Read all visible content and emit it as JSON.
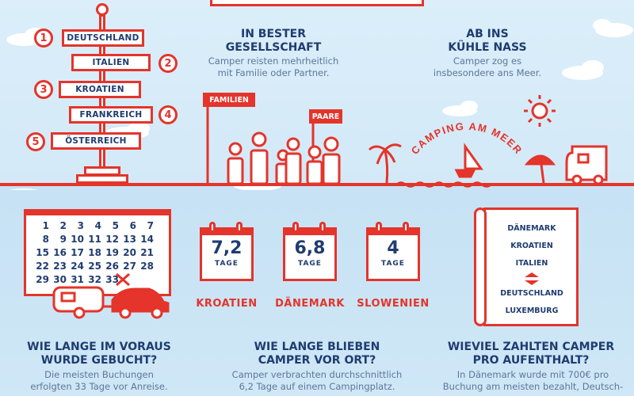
{
  "destinations": {
    "items": [
      {
        "rank": "1",
        "label": "DEUTSCHLAND"
      },
      {
        "rank": "2",
        "label": "ITALIEN"
      },
      {
        "rank": "3",
        "label": "KROATIEN"
      },
      {
        "rank": "4",
        "label": "FRANKREICH"
      },
      {
        "rank": "5",
        "label": "ÖSTERREICH"
      }
    ]
  },
  "company": {
    "title_line1": "IN BESTER",
    "title_line2": "GESELLSCHAFT",
    "text_line1": "Camper reisten mehrheitlich",
    "text_line2": "mit Familie oder Partner.",
    "sign_families": "FAMILIEN",
    "sign_couples": "PAARE"
  },
  "sea": {
    "title_line1": "AB INS",
    "title_line2": "KÜHLE NASS",
    "text_line1": "Camper zog es",
    "text_line2": "insbesondere ans Meer.",
    "arc_label": "CAMPING AM MEER"
  },
  "calendar": {
    "rows": [
      [
        "1",
        "2",
        "3",
        "4",
        "5",
        "6",
        "7"
      ],
      [
        "8",
        "9",
        "10",
        "11",
        "12",
        "13",
        "14"
      ],
      [
        "15",
        "16",
        "17",
        "18",
        "19",
        "20",
        "21"
      ],
      [
        "22",
        "23",
        "24",
        "25",
        "26",
        "27",
        "28"
      ],
      [
        "29",
        "30",
        "31",
        "32",
        "33"
      ]
    ],
    "crossed": "33"
  },
  "stays": [
    {
      "value": "7,2",
      "unit": "TAGE",
      "country": "KROATIEN"
    },
    {
      "value": "6,8",
      "unit": "TAGE",
      "country": "DÄNEMARK"
    },
    {
      "value": "4",
      "unit": "TAGE",
      "country": "SLOWENIEN"
    }
  ],
  "price_ranking": {
    "top": [
      "DÄNEMARK",
      "KROATIEN",
      "ITALIEN"
    ],
    "bottom": [
      "DEUTSCHLAND",
      "LUXEMBURG"
    ]
  },
  "bottom": {
    "advance": {
      "title_line1": "WIE LANGE IM VORAUS",
      "title_line2": "WURDE GEBUCHT?",
      "text_line1": "Die meisten Buchungen",
      "text_line2": "erfolgten 33 Tage vor Anreise."
    },
    "stay": {
      "title_line1": "WIE LANGE BLIEBEN",
      "title_line2": "CAMPER VOR ORT?",
      "text_line1": "Camper verbrachten durchschnittlich",
      "text_line2": "6,2 Tage auf einem Campingplatz."
    },
    "price": {
      "title_line1": "WIEVIEL ZAHLTEN CAMPER",
      "title_line2": "PRO AUFENTHALT?",
      "text_line1": "In Dänemark wurde mit 700€ pro",
      "text_line2": "Buchung am meisten bezahlt, Deutsch-"
    }
  },
  "colors": {
    "accent": "#e4342b",
    "navy": "#1f3c70",
    "sky": "#dbeefa",
    "water": "#c6e2f4"
  }
}
